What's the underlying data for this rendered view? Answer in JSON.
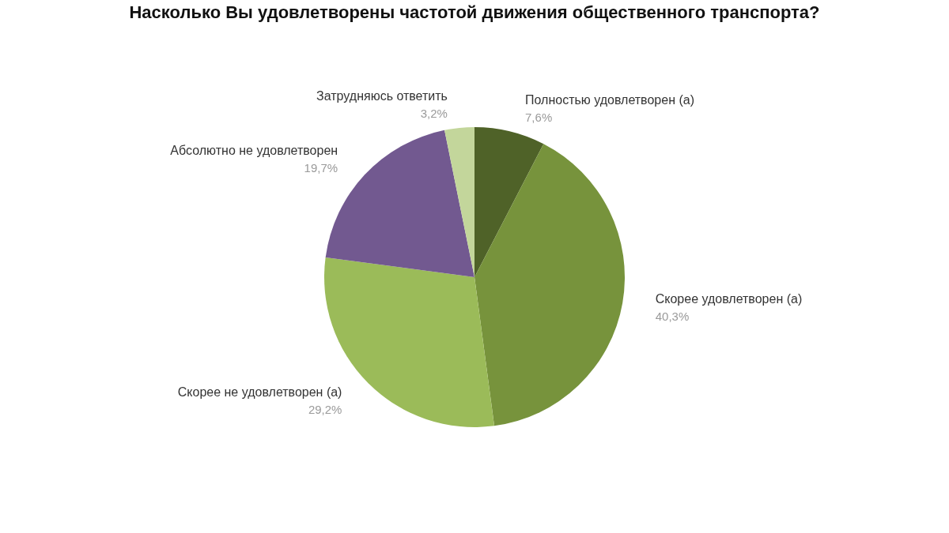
{
  "chart_data": {
    "type": "pie",
    "title": "Насколько Вы удовлетворены частотой движения общественного транспорта?",
    "categories": [
      "Полностью удовлетворен (а)",
      "Скорее удовлетворен (а)",
      "Скорее не удовлетворен (а)",
      "Абсолютно не удовлетворен",
      "Затрудняюсь ответить"
    ],
    "values": [
      7.6,
      40.3,
      29.2,
      19.7,
      3.2
    ],
    "value_labels": [
      "7,6%",
      "40,3%",
      "29,2%",
      "19,7%",
      "3,2%"
    ],
    "colors": [
      "#4f6228",
      "#77933c",
      "#9bbb59",
      "#725990",
      "#c3d69b"
    ],
    "legend": false
  }
}
